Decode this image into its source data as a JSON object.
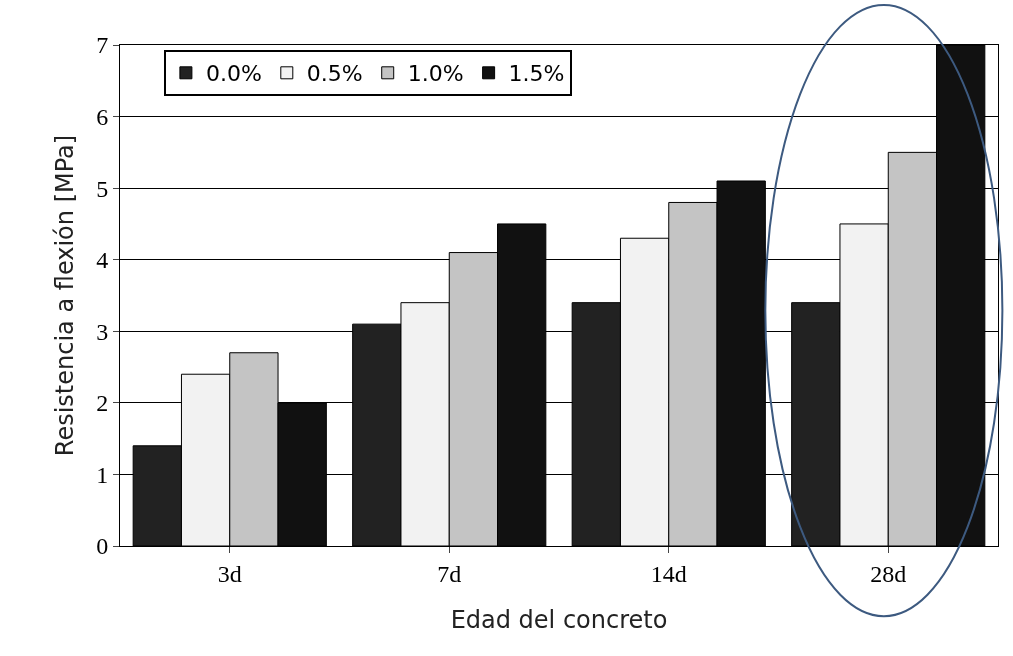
{
  "chart_data": {
    "type": "bar",
    "xlabel": "Edad del concreto",
    "ylabel": "Resistencia a flexión [MPa]",
    "categories": [
      "3d",
      "7d",
      "14d",
      "28d"
    ],
    "series": [
      {
        "name": "0.0%",
        "color": "#222222",
        "values": [
          1.4,
          3.1,
          3.4,
          3.4
        ]
      },
      {
        "name": "0.5%",
        "color": "#f2f2f2",
        "values": [
          2.4,
          3.4,
          4.3,
          4.5
        ]
      },
      {
        "name": "1.0%",
        "color": "#c4c4c4",
        "values": [
          2.7,
          4.1,
          4.8,
          5.5
        ]
      },
      {
        "name": "1.5%",
        "color": "#111111",
        "values": [
          2.0,
          4.5,
          5.1,
          7.0
        ]
      }
    ],
    "ylim": [
      0,
      7
    ],
    "yticks": [
      0,
      1,
      2,
      3,
      4,
      5,
      6,
      7
    ],
    "grid": "y",
    "legend": "top left"
  }
}
